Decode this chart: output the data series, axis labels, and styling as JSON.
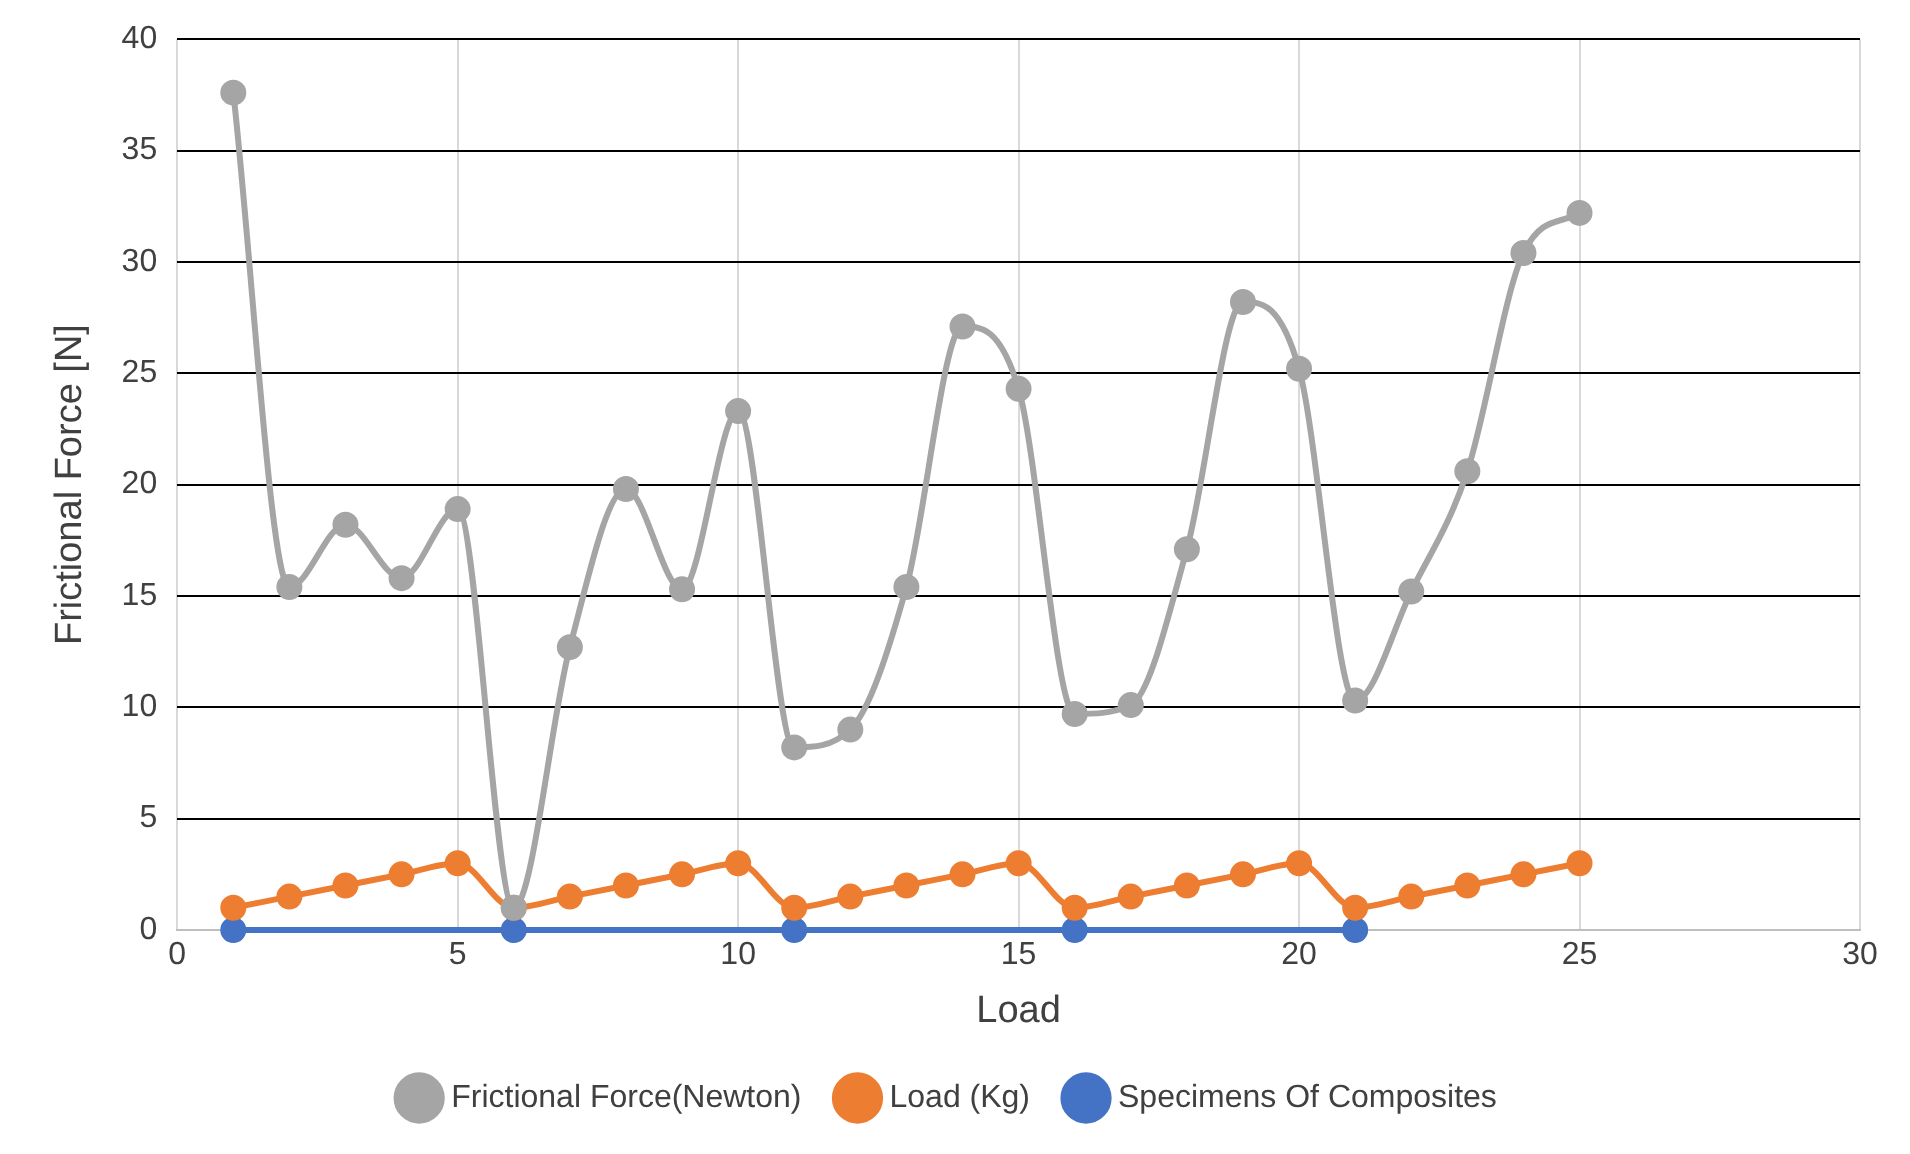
{
  "chart_data": {
    "type": "line",
    "xlabel": "Load",
    "ylabel": "Frictional Force [N]",
    "xlim": [
      0,
      30
    ],
    "xticks": [
      0,
      5,
      10,
      15,
      20,
      25,
      30
    ],
    "ylim": [
      0,
      40
    ],
    "yticks": [
      0,
      5,
      10,
      15,
      20,
      25,
      30,
      35,
      40
    ],
    "grid": true,
    "legend": "bottom",
    "marker": "circle",
    "series": [
      {
        "name": "Specimens Of Composites",
        "color": "#4472c4",
        "x": [
          1,
          6,
          11,
          16,
          21
        ],
        "values": [
          0,
          0,
          0,
          0,
          0
        ]
      },
      {
        "name": "Load (Kg)",
        "color": "#ed7d31",
        "x": [
          1,
          2,
          3,
          4,
          5,
          6,
          7,
          8,
          9,
          10,
          11,
          12,
          13,
          14,
          15,
          16,
          17,
          18,
          19,
          20,
          21,
          22,
          23,
          24,
          25
        ],
        "values": [
          1,
          1.5,
          2,
          2.5,
          3,
          1,
          1.5,
          2,
          2.5,
          3,
          1,
          1.5,
          2,
          2.5,
          3,
          1,
          1.5,
          2,
          2.5,
          3,
          1,
          1.5,
          2,
          2.5,
          3
        ]
      },
      {
        "name": "Frictional Force(Newton)",
        "color": "#a5a5a5",
        "x": [
          1,
          2,
          3,
          4,
          5,
          6,
          7,
          8,
          9,
          10,
          11,
          12,
          13,
          14,
          15,
          16,
          17,
          18,
          19,
          20,
          21,
          22,
          23,
          24,
          25
        ],
        "values": [
          37.6,
          15.4,
          18.2,
          15.8,
          18.9,
          1.0,
          12.7,
          19.8,
          15.3,
          23.3,
          8.2,
          9.0,
          15.4,
          27.1,
          24.3,
          9.7,
          10.1,
          17.1,
          28.2,
          25.2,
          10.3,
          15.2,
          20.6,
          30.4,
          32.2
        ]
      }
    ]
  }
}
